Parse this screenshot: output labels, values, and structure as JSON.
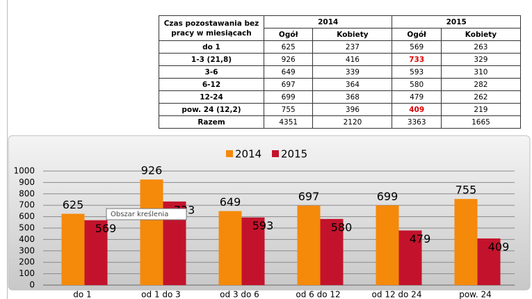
{
  "table": {
    "header": [
      "Czas pozostawania bez pracy w miesiącach",
      "2014",
      "2015"
    ],
    "subheader": [
      "Ogół",
      "Kobiety",
      "Ogół",
      "Kobiety"
    ],
    "rows": [
      [
        "do 1",
        625,
        237,
        569,
        263
      ],
      [
        "1-3 (21,8)",
        926,
        416,
        733,
        329
      ],
      [
        "3-6",
        649,
        339,
        593,
        310
      ],
      [
        "6-12",
        697,
        364,
        580,
        282
      ],
      [
        "12-24",
        699,
        368,
        479,
        262
      ],
      [
        "pow. 24 (12,2)",
        755,
        396,
        409,
        219
      ],
      [
        "Razem",
        4351,
        2120,
        3363,
        1665
      ]
    ],
    "highlight": [
      [
        1,
        3
      ],
      [
        5,
        3
      ]
    ],
    "highlight_color": "#e00000"
  },
  "chart_data": {
    "type": "bar",
    "categories": [
      "do 1",
      "od 1 do 3",
      "od 3 do 6",
      "od 6 do 12",
      "od 12 do 24",
      "pow. 24"
    ],
    "series": [
      {
        "name": "2014",
        "color": "#f5890a",
        "values": [
          625,
          926,
          649,
          697,
          699,
          755
        ]
      },
      {
        "name": "2015",
        "color": "#c3132c",
        "values": [
          569,
          733,
          593,
          580,
          479,
          409
        ]
      }
    ],
    "ylim": [
      0,
      1000
    ],
    "yticks": [
      0,
      100,
      200,
      300,
      400,
      500,
      600,
      700,
      800,
      900,
      1000
    ],
    "grid": true,
    "legend": "top"
  },
  "tooltip": "Obszar kreślenia"
}
